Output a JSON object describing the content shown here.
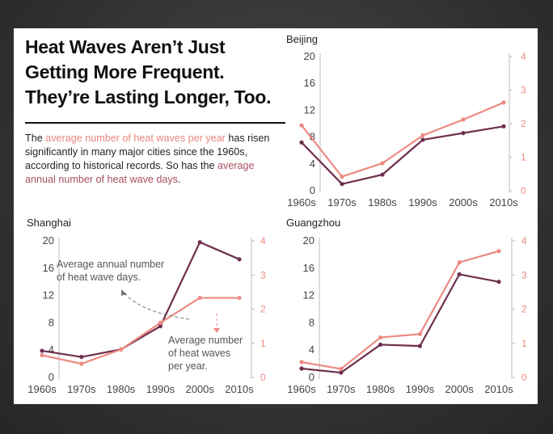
{
  "header": {
    "title": "Heat Waves Aren’t Just Getting More Frequent. They’re Lasting Longer, Too.",
    "desc_pre": "The ",
    "desc_hl1": "average number of heat waves per year",
    "desc_mid": " has risen significantly in many major cities since the 1960s, according to historical records. So has the ",
    "desc_hl2": "average annual number of heat wave days",
    "desc_post": "."
  },
  "colors": {
    "days": "#6e2f4e",
    "waves": "#ec8a82",
    "axis": "#bbbbbb",
    "text": "#555555"
  },
  "chart_data": [
    {
      "type": "line",
      "title": "Beijing",
      "categories": [
        "1960s",
        "1970s",
        "1980s",
        "1990s",
        "2000s",
        "2010s"
      ],
      "y_left": {
        "ticks": [
          "0",
          "4",
          "8",
          "12",
          "16",
          "20"
        ],
        "range": [
          0,
          20
        ]
      },
      "y_right": {
        "ticks": [
          "0",
          "1",
          "2",
          "3",
          "4"
        ],
        "range": [
          0,
          4
        ]
      },
      "series": [
        {
          "axis": "left",
          "values": [
            7.2,
            1.0,
            2.4,
            7.6,
            8.6,
            9.6
          ]
        },
        {
          "axis": "right",
          "values": [
            1.95,
            0.42,
            0.82,
            1.65,
            2.12,
            2.63
          ]
        }
      ]
    },
    {
      "type": "line",
      "title": "Shanghai",
      "categories": [
        "1960s",
        "1970s",
        "1980s",
        "1990s",
        "2000s",
        "2010s"
      ],
      "y_left": {
        "ticks": [
          "0",
          "4",
          "8",
          "12",
          "16",
          "20"
        ],
        "range": [
          0,
          20
        ]
      },
      "y_right": {
        "ticks": [
          "0",
          "1",
          "2",
          "3",
          "4"
        ],
        "range": [
          0,
          4
        ]
      },
      "series": [
        {
          "axis": "left",
          "values": [
            3.9,
            3.0,
            4.1,
            7.5,
            19.8,
            17.3
          ]
        },
        {
          "axis": "right",
          "values": [
            0.65,
            0.4,
            0.82,
            1.6,
            2.33,
            2.33
          ]
        }
      ],
      "annotations": [
        {
          "text": [
            "Average annual number",
            "of heat wave days."
          ]
        },
        {
          "text": [
            "Average number",
            "of heat waves",
            "per year."
          ]
        }
      ]
    },
    {
      "type": "line",
      "title": "Guangzhou",
      "categories": [
        "1960s",
        "1970s",
        "1980s",
        "1990s",
        "2000s",
        "2010s"
      ],
      "y_left": {
        "ticks": [
          "0",
          "4",
          "8",
          "12",
          "16",
          "20"
        ],
        "range": [
          0,
          20
        ]
      },
      "y_right": {
        "ticks": [
          "0",
          "1",
          "2",
          "3",
          "4"
        ],
        "range": [
          0,
          4
        ]
      },
      "series": [
        {
          "axis": "left",
          "values": [
            1.3,
            0.7,
            4.8,
            4.6,
            15.1,
            14.0
          ]
        },
        {
          "axis": "right",
          "values": [
            0.45,
            0.25,
            1.17,
            1.27,
            3.37,
            3.7
          ]
        }
      ]
    }
  ]
}
